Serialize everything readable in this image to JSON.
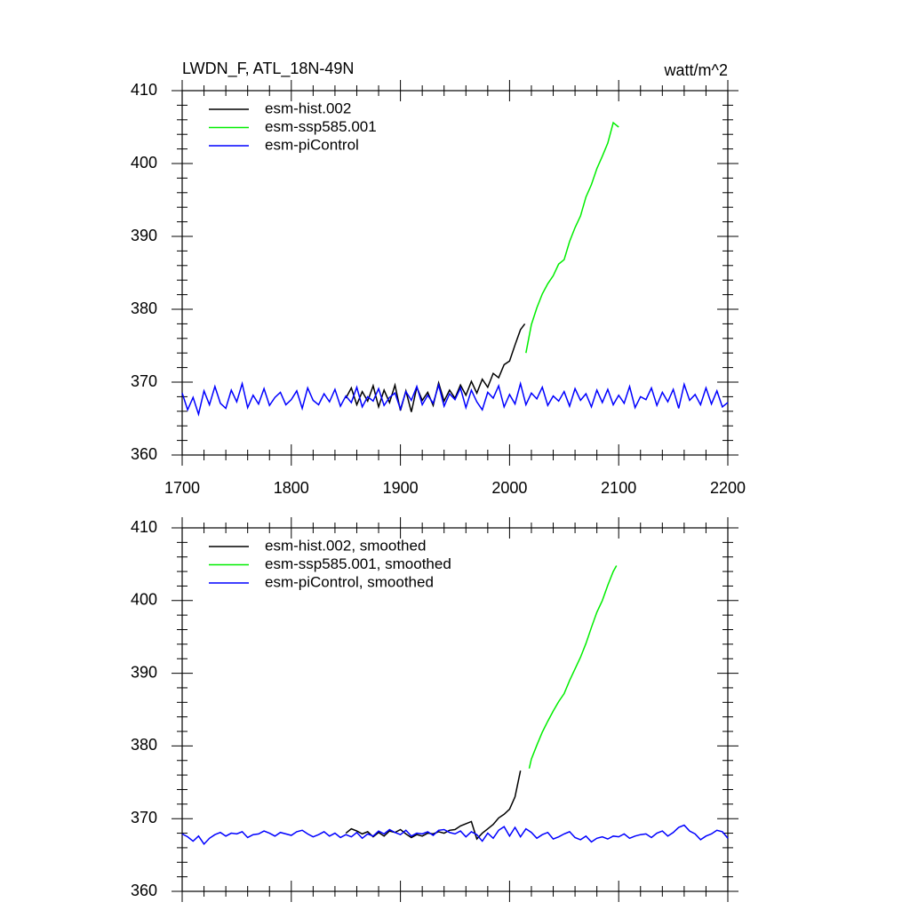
{
  "chart_data": [
    {
      "type": "line",
      "title": "LWDN_F, ATL_18N-49N",
      "units": "watt/m^2",
      "xlim": [
        1700,
        2200
      ],
      "xticks": [
        1700,
        1800,
        1900,
        2000,
        2100,
        2200
      ],
      "xtick_labels": true,
      "ylim": [
        360,
        410
      ],
      "yticks": [
        360,
        370,
        380,
        390,
        400,
        410
      ],
      "series": [
        {
          "name": "esm-hist.002",
          "color": "#000000",
          "x": [
            1850,
            1855,
            1860,
            1865,
            1870,
            1875,
            1880,
            1885,
            1890,
            1895,
            1900,
            1905,
            1910,
            1915,
            1920,
            1925,
            1930,
            1935,
            1940,
            1945,
            1950,
            1955,
            1960,
            1965,
            1970,
            1975,
            1980,
            1985,
            1990,
            1995,
            2000,
            2005,
            2010,
            2014
          ],
          "values": [
            367.8,
            369.2,
            366.9,
            368.7,
            367.4,
            369.5,
            366.6,
            368.9,
            367.2,
            369.6,
            366.1,
            368.8,
            365.9,
            369.3,
            367.5,
            368.6,
            366.8,
            369.9,
            367.4,
            368.9,
            367.8,
            369.6,
            368.2,
            370.1,
            368.5,
            370.4,
            369.3,
            371.2,
            370.6,
            372.4,
            372.9,
            375.1,
            377.2,
            378.0
          ]
        },
        {
          "name": "esm-ssp585.001",
          "color": "#00ee00",
          "x": [
            2015,
            2020,
            2025,
            2030,
            2035,
            2040,
            2045,
            2050,
            2055,
            2060,
            2065,
            2070,
            2075,
            2080,
            2085,
            2090,
            2095,
            2100
          ],
          "values": [
            374.0,
            377.9,
            380.2,
            382.1,
            383.5,
            384.6,
            386.2,
            386.8,
            389.3,
            391.2,
            392.8,
            395.4,
            397.1,
            399.3,
            401.0,
            402.8,
            405.6,
            405.0
          ]
        },
        {
          "name": "esm-piControl",
          "color": "#0000ff",
          "x": [
            1700,
            1705,
            1710,
            1715,
            1720,
            1725,
            1730,
            1735,
            1740,
            1745,
            1750,
            1755,
            1760,
            1765,
            1770,
            1775,
            1780,
            1785,
            1790,
            1795,
            1800,
            1805,
            1810,
            1815,
            1820,
            1825,
            1830,
            1835,
            1840,
            1845,
            1850,
            1855,
            1860,
            1865,
            1870,
            1875,
            1880,
            1885,
            1890,
            1895,
            1900,
            1905,
            1910,
            1915,
            1920,
            1925,
            1930,
            1935,
            1940,
            1945,
            1950,
            1955,
            1960,
            1965,
            1970,
            1975,
            1980,
            1985,
            1990,
            1995,
            2000,
            2005,
            2010,
            2015,
            2020,
            2025,
            2030,
            2035,
            2040,
            2045,
            2050,
            2055,
            2060,
            2065,
            2070,
            2075,
            2080,
            2085,
            2090,
            2095,
            2100,
            2105,
            2110,
            2115,
            2120,
            2125,
            2130,
            2135,
            2140,
            2145,
            2150,
            2155,
            2160,
            2165,
            2170,
            2175,
            2180,
            2185,
            2190,
            2195,
            2200
          ],
          "values": [
            368.5,
            366.2,
            367.9,
            365.6,
            368.8,
            366.9,
            369.4,
            367.1,
            366.4,
            368.9,
            367.3,
            369.8,
            366.5,
            368.2,
            367.0,
            369.1,
            366.8,
            367.9,
            368.6,
            366.9,
            367.6,
            368.8,
            366.4,
            369.2,
            367.5,
            366.9,
            368.4,
            367.3,
            369.0,
            366.7,
            368.1,
            367.2,
            369.3,
            366.6,
            368.0,
            367.4,
            369.1,
            366.8,
            367.9,
            368.5,
            366.3,
            368.7,
            367.5,
            369.4,
            366.9,
            368.2,
            367.1,
            369.6,
            366.7,
            368.4,
            367.6,
            369.2,
            366.5,
            368.9,
            367.3,
            366.2,
            368.6,
            367.8,
            369.5,
            366.6,
            368.3,
            367.0,
            369.8,
            366.9,
            368.5,
            367.7,
            369.3,
            366.8,
            368.1,
            367.4,
            368.7,
            366.7,
            369.1,
            367.5,
            368.4,
            366.6,
            368.9,
            367.2,
            369.0,
            366.9,
            368.2,
            367.1,
            369.4,
            366.5,
            368.0,
            367.6,
            369.2,
            366.8,
            368.6,
            367.3,
            369.0,
            366.4,
            369.7,
            367.5,
            368.3,
            366.9,
            369.2,
            367.0,
            368.8,
            366.6,
            367.2
          ]
        }
      ]
    },
    {
      "type": "line",
      "xlim": [
        1700,
        2200
      ],
      "xticks": [
        1700,
        1800,
        1900,
        2000,
        2100,
        2200
      ],
      "xtick_labels": false,
      "ylim": [
        360,
        410
      ],
      "yticks": [
        360,
        370,
        380,
        390,
        400,
        410
      ],
      "series": [
        {
          "name": "esm-hist.002, smoothed",
          "color": "#000000",
          "x": [
            1850,
            1855,
            1860,
            1865,
            1870,
            1875,
            1880,
            1885,
            1890,
            1895,
            1900,
            1905,
            1910,
            1915,
            1920,
            1925,
            1930,
            1935,
            1940,
            1945,
            1950,
            1955,
            1960,
            1965,
            1970,
            1975,
            1980,
            1985,
            1990,
            1995,
            2000,
            2005,
            2010
          ],
          "values": [
            368.0,
            368.6,
            368.3,
            367.9,
            368.2,
            367.5,
            368.1,
            367.6,
            368.3,
            368.1,
            368.5,
            367.9,
            367.4,
            367.8,
            367.6,
            368.0,
            367.9,
            368.2,
            368.0,
            368.4,
            368.5,
            369.0,
            369.3,
            369.6,
            367.2,
            368.0,
            368.6,
            369.2,
            370.1,
            370.6,
            371.3,
            373.0,
            376.6
          ]
        },
        {
          "name": "esm-ssp585.001, smoothed",
          "color": "#00ee00",
          "x": [
            2018,
            2020,
            2025,
            2030,
            2035,
            2040,
            2045,
            2050,
            2055,
            2060,
            2065,
            2070,
            2075,
            2080,
            2085,
            2090,
            2095,
            2098
          ],
          "values": [
            376.9,
            378.2,
            380.1,
            381.9,
            383.4,
            384.8,
            386.1,
            387.2,
            389.0,
            390.6,
            392.2,
            394.1,
            396.3,
            398.4,
            400.0,
            402.1,
            404.0,
            404.8
          ]
        },
        {
          "name": "esm-piControl, smoothed",
          "color": "#0000ff",
          "x": [
            1700,
            1705,
            1710,
            1715,
            1720,
            1725,
            1730,
            1735,
            1740,
            1745,
            1750,
            1755,
            1760,
            1765,
            1770,
            1775,
            1780,
            1785,
            1790,
            1795,
            1800,
            1805,
            1810,
            1815,
            1820,
            1825,
            1830,
            1835,
            1840,
            1845,
            1850,
            1855,
            1860,
            1865,
            1870,
            1875,
            1880,
            1885,
            1890,
            1895,
            1900,
            1905,
            1910,
            1915,
            1920,
            1925,
            1930,
            1935,
            1940,
            1945,
            1950,
            1955,
            1960,
            1965,
            1970,
            1975,
            1980,
            1985,
            1990,
            1995,
            2000,
            2005,
            2010,
            2015,
            2020,
            2025,
            2030,
            2035,
            2040,
            2045,
            2050,
            2055,
            2060,
            2065,
            2070,
            2075,
            2080,
            2085,
            2090,
            2095,
            2100,
            2105,
            2110,
            2115,
            2120,
            2125,
            2130,
            2135,
            2140,
            2145,
            2150,
            2155,
            2160,
            2165,
            2170,
            2175,
            2180,
            2185,
            2190,
            2195,
            2200
          ],
          "values": [
            367.9,
            367.5,
            366.9,
            367.6,
            366.5,
            367.3,
            367.8,
            368.1,
            367.6,
            368.0,
            367.9,
            368.2,
            367.4,
            367.8,
            367.9,
            368.3,
            368.0,
            367.6,
            368.1,
            367.9,
            367.7,
            368.2,
            368.4,
            367.9,
            367.5,
            367.8,
            368.2,
            367.6,
            368.0,
            367.4,
            367.8,
            367.5,
            368.1,
            367.3,
            367.9,
            367.6,
            368.3,
            367.9,
            368.5,
            368.1,
            367.8,
            368.4,
            367.6,
            368.0,
            367.9,
            368.2,
            367.7,
            368.4,
            368.5,
            368.1,
            367.9,
            368.3,
            367.5,
            368.2,
            367.8,
            366.9,
            368.0,
            367.3,
            368.4,
            368.9,
            367.6,
            368.8,
            367.5,
            368.6,
            368.1,
            367.3,
            367.8,
            368.1,
            367.2,
            367.5,
            367.9,
            368.2,
            367.4,
            367.1,
            367.6,
            366.8,
            367.3,
            367.5,
            367.2,
            367.6,
            367.5,
            367.9,
            367.3,
            367.6,
            367.8,
            367.9,
            367.4,
            368.0,
            368.3,
            367.6,
            368.1,
            368.8,
            369.1,
            368.3,
            367.9,
            367.1,
            367.6,
            367.9,
            368.4,
            368.2,
            367.3
          ]
        }
      ]
    }
  ]
}
